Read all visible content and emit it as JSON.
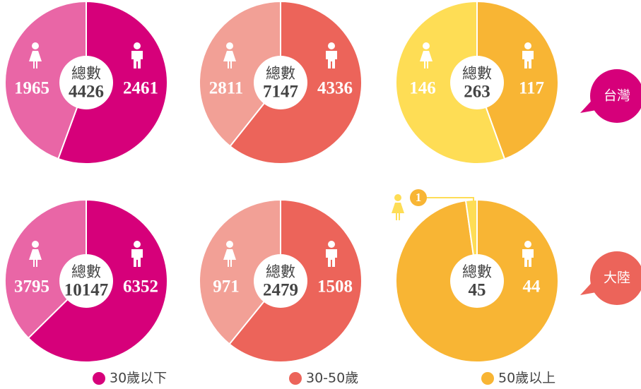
{
  "chart_data": [
    {
      "type": "pie",
      "center_label": "總數",
      "total": 4426,
      "values": [
        1965,
        2461
      ],
      "colors": [
        "#e966a6",
        "#d6007a"
      ]
    },
    {
      "type": "pie",
      "center_label": "總數",
      "total": 7147,
      "values": [
        2811,
        4336
      ],
      "colors": [
        "#f2a096",
        "#ec645a"
      ]
    },
    {
      "type": "pie",
      "center_label": "總數",
      "total": 263,
      "values": [
        146,
        117
      ],
      "colors": [
        "#fedd55",
        "#f8b534"
      ]
    },
    {
      "type": "pie",
      "center_label": "總數",
      "total": 10147,
      "values": [
        3795,
        6352
      ],
      "colors": [
        "#e966a6",
        "#d6007a"
      ]
    },
    {
      "type": "pie",
      "center_label": "總數",
      "total": 2479,
      "values": [
        971,
        1508
      ],
      "colors": [
        "#f2a096",
        "#ec645a"
      ]
    },
    {
      "type": "pie",
      "center_label": "總數",
      "total": 45,
      "values": [
        1,
        44
      ],
      "colors": [
        "#fedd55",
        "#f8b534"
      ]
    }
  ],
  "regions": [
    {
      "label": "台灣",
      "color": "#d6007a"
    },
    {
      "label": "大陸",
      "color": "#ec645a"
    }
  ],
  "legend": [
    {
      "label": "30歲以下",
      "color": "#d6007a"
    },
    {
      "label": "30-50歲",
      "color": "#ec645a"
    },
    {
      "label": "50歲以上",
      "color": "#f8b534"
    }
  ]
}
